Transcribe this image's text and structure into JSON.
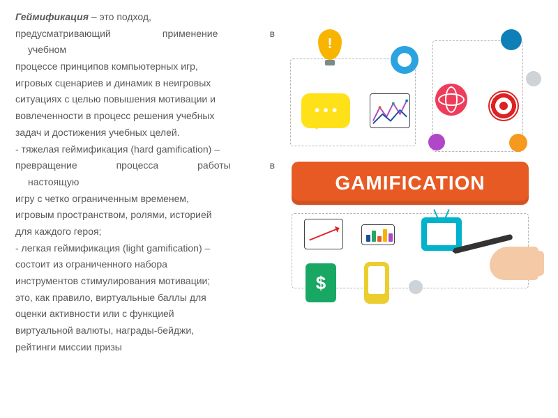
{
  "text": {
    "l0a": "Геймификация",
    "l0b": " – это подход,",
    "l1a1": "предусматривающий",
    "l1a2": "применение",
    "l1a3": "в",
    "l1b": "учебном",
    "l2": "процессе принципов компьютерных игр,",
    "l3": "игровых сценариев и динамик в неигровых",
    "l4": "ситуациях с целью повышения мотивации и",
    "l5": "вовлеченности в процесс решения учебных",
    "l6": "задач и достижения учебных целей.",
    "l7": " - тяжелая геймификация (hard gamification) –",
    "l8a1": "превращение",
    "l8a2": "процесса",
    "l8a3": "работы",
    "l8a4": "в",
    "l8b": "настоящую",
    "l9": "игру с четко ограниченным временем,",
    "l10": "игровым пространством, ролями, историей",
    "l11": "для каждого героя;",
    "l12": " - легкая геймификация (light gamification) –",
    "l13": "состоит из ограниченного набора",
    "l14": "инструментов стимулирования мотивации;",
    "l15": "это, как правило, виртуальные баллы для",
    "l16": "оценки активности или с функцией",
    "l17": "виртуальной валюты, награды-бейджи,",
    "l18": "рейтинги  миссии  призы"
  },
  "infographic": {
    "banner_label": "GAMIFICATION",
    "banner_bg": "#e75a24",
    "banner_fg": "#ffffff",
    "dash_color": "#b5b5b5",
    "icons": {
      "bubble": "#ffe11a",
      "gear": "#2aa3e0",
      "bulb": "#f7b500",
      "globe": "#f03c5b",
      "tv": "#00b2cc",
      "phone": "#eccd2f",
      "dollar_bg": "#19a864",
      "dollar_sign": "$",
      "dot_blue": "#0f7fb7",
      "dot_gray": "#cdd3d6",
      "dot_orange": "#f59a1e",
      "dot_purple": "#b047c9",
      "target_red": "#d22222"
    },
    "bars": [
      {
        "x": 6,
        "h": 10,
        "c": "#1b4e9b"
      },
      {
        "x": 14,
        "h": 16,
        "c": "#22a865"
      },
      {
        "x": 22,
        "h": 8,
        "c": "#e75a24"
      },
      {
        "x": 30,
        "h": 18,
        "c": "#f7b500"
      },
      {
        "x": 38,
        "h": 12,
        "c": "#b047c9"
      }
    ]
  }
}
